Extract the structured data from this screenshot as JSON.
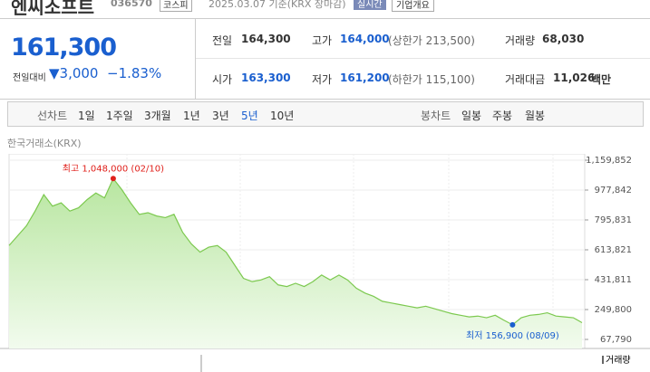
{
  "header": {
    "name": "엔씨소프트",
    "code": "036570",
    "market": "코스피",
    "date": "2025.03.07 기준(KRX 장마감)",
    "realtime": "실시간",
    "company_info": "기업개요"
  },
  "quote": {
    "price": "161,300",
    "change_label": "전일대비",
    "change": "▼3,000",
    "change_rate": "−1.83%"
  },
  "stats": {
    "prev": {
      "label": "전일",
      "value": "164,300"
    },
    "high": {
      "label": "고가",
      "value": "164,000",
      "note": "(상한가 213,500)"
    },
    "volume": {
      "label": "거래량",
      "value": "68,030"
    },
    "open": {
      "label": "시가",
      "value": "163,300"
    },
    "low": {
      "label": "저가",
      "value": "161,200",
      "note": "(하한가 115,100)"
    },
    "amount": {
      "label": "거래대금",
      "value": "11,026",
      "unit": "백만"
    }
  },
  "tabs": {
    "line_label": "선차트",
    "line": [
      "1일",
      "1주일",
      "3개월",
      "1년",
      "3년",
      "5년",
      "10년"
    ],
    "active": 5,
    "candle_label": "봉차트",
    "candle": [
      "일봉",
      "주봉",
      "월봉"
    ]
  },
  "chart_data": {
    "type": "line",
    "source": "한국거래소(KRX)",
    "color": "#7cc94f",
    "values": [
      640000,
      700000,
      760000,
      850000,
      950000,
      880000,
      900000,
      850000,
      870000,
      920000,
      960000,
      930000,
      1048000,
      980000,
      900000,
      830000,
      840000,
      820000,
      810000,
      830000,
      720000,
      650000,
      600000,
      630000,
      640000,
      600000,
      520000,
      440000,
      420000,
      430000,
      450000,
      400000,
      390000,
      410000,
      390000,
      420000,
      460000,
      430000,
      460000,
      430000,
      380000,
      350000,
      330000,
      300000,
      290000,
      280000,
      270000,
      260000,
      270000,
      255000,
      240000,
      225000,
      215000,
      205000,
      210000,
      200000,
      215000,
      185000,
      156900,
      200000,
      215000,
      220000,
      230000,
      210000,
      205000,
      200000,
      170000
    ],
    "ylim": [
      67790,
      1159852
    ],
    "yticks": [
      {
        "value": 1159852,
        "label": "1,159,852"
      },
      {
        "value": 977842,
        "label": "977,842"
      },
      {
        "value": 795831,
        "label": "795,831"
      },
      {
        "value": 613821,
        "label": "613,821"
      },
      {
        "value": 431811,
        "label": "431,811"
      },
      {
        "value": 249800,
        "label": "249,800"
      },
      {
        "value": 67790,
        "label": "67,790"
      }
    ],
    "grid": true,
    "high_label": "최고 1,048,000 (02/10)",
    "low_label": "최저 156,900 (08/09)",
    "volume_label": "거래량"
  }
}
